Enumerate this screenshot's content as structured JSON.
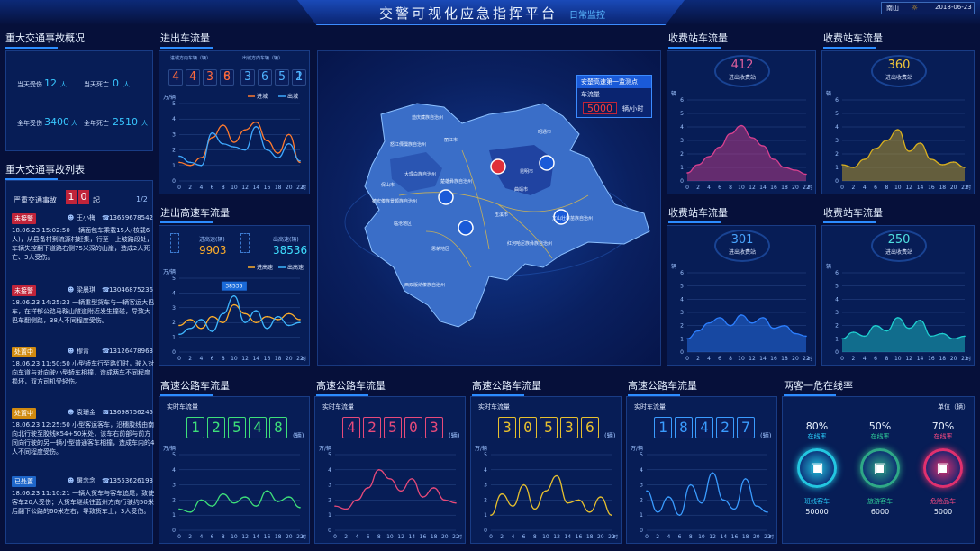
{
  "header": {
    "title": "交警可视化应急指挥平台",
    "mode": "日常监控",
    "weather": "南山",
    "date": "2018-06-23"
  },
  "accident_overview": {
    "title": "重大交通事故概况",
    "today_injured_label": "当天受伤",
    "today_injured": "12",
    "today_injured_unit": "人",
    "today_dead_label": "当天死亡",
    "today_dead": "0",
    "today_dead_unit": "人",
    "year_injured_label": "全年受伤",
    "year_injured": "3400",
    "year_injured_unit": "人",
    "year_dead_label": "全年死亡",
    "year_dead": "2510",
    "year_dead_unit": "人"
  },
  "accident_list": {
    "title": "重大交通事故列表",
    "severe_label": "严重交通事故",
    "severe_count": "10",
    "severe_unit": "起",
    "page": "1/2",
    "items": [
      {
        "tag": "未接警",
        "tag_color": "#c0243a",
        "person": "王小梅",
        "phone": "13659678542",
        "time": "18.06.23 15:02:50",
        "text": "一辆面包车乘载15人(核载6人)，从县备村到流源村赶集，行至一上坡路段处，车辆失控翻下道路右侧75米深的山崖，造成2人死亡、3人受伤。"
      },
      {
        "tag": "未接警",
        "tag_color": "#c0243a",
        "person": "梁晨琪",
        "phone": "13046875236",
        "time": "18.06.23 14:25:23",
        "text": "一辆重型货车与一辆客运大巴车，在祥郁公路马鞍山隧道附近发生撞碰，导致大巴车翻侧路，38人不同程度受伤。"
      },
      {
        "tag": "处置中",
        "tag_color": "#d08a10",
        "person": "穆青",
        "phone": "13126478963",
        "time": "18.06.23 11:50:50",
        "text": "小型轿车行至路灯时，驶入对向车道与对向驶小型轿车相撞，造成两车不同程度损坏，双方司机受轻伤。"
      },
      {
        "tag": "处置中",
        "tag_color": "#d08a10",
        "person": "袁珊金",
        "phone": "13698756245",
        "time": "18.06.23 12:25:50",
        "text": "小型客运客车，沿穗胶线由南向北行驶至胶线K54+50米处，该车右前部与前方同向行驶的另一辆小型普通客车相撞，造成车内的4人不同程度受伤。"
      },
      {
        "tag": "已处置",
        "tag_color": "#1e66c9",
        "person": "屠念念",
        "phone": "13553626193",
        "time": "18.06.23 11:10:21",
        "text": "一辆大货车与客车追尾，致使客车20人受伤；大货车继续往蓝州方向行驶约50米后翻下公路的60米左右，导致货车上，3人受伤。"
      }
    ]
  },
  "out_flow": {
    "title": "进出车流量",
    "in_label": "进城方向车辆（辆）",
    "out_label": "出城方向车辆（辆）",
    "in_digits": [
      "4",
      "4",
      "3",
      "8",
      "6"
    ],
    "out_digits": [
      "3",
      "6",
      "5",
      "1",
      "2"
    ],
    "unit": "万/辆",
    "legend_in": "进城",
    "legend_out": "出城",
    "in_color": "#ff7a2e",
    "out_color": "#3fa9ff"
  },
  "hw_flow": {
    "title": "进出高速车流量",
    "in_label": "进高速(辆)",
    "in_value": "9903",
    "out_label": "出高速(辆)",
    "out_value": "38536",
    "unit": "万/辆",
    "legend_in": "进高速",
    "legend_out": "出高速",
    "peak_label": "38536",
    "in_color": "#ffae2a",
    "out_color": "#3fb7ff"
  },
  "map": {
    "info_title": "安楚高速第一监测点",
    "flow_label": "车流量",
    "flow_value": "5000",
    "flow_unit": "辆/小时",
    "regions": [
      "迪庆藏族自治州",
      "丽江市",
      "怒江傈僳族自治州",
      "大理白族自治州",
      "楚雄彝族自治州",
      "昆明市",
      "曲靖市",
      "昭通市",
      "保山市",
      "德宏傣族景颇族自治州",
      "临沧地区",
      "思茅地区",
      "西双版纳傣族自治州",
      "玉溪市",
      "红河哈尼族彝族自治州",
      "文山壮族苗族自治州"
    ]
  },
  "toll1": {
    "title": "收费站车流量",
    "value": "412",
    "label": "进出收费站",
    "unit": "辆",
    "color": "#d8408f",
    "value_color": "#e0609f"
  },
  "toll2": {
    "title": "收费站车流量",
    "value": "360",
    "label": "进出收费站",
    "unit": "辆",
    "color": "#d8b020",
    "value_color": "#f0c63a"
  },
  "toll3": {
    "title": "收费站车流量",
    "value": "301",
    "label": "进出收费站",
    "unit": "辆",
    "color": "#2c7fff",
    "value_color": "#4aa6ff"
  },
  "toll4": {
    "title": "收费站车流量",
    "value": "250",
    "label": "进出收费站",
    "unit": "辆",
    "color": "#1fd0d0",
    "value_color": "#4fe0e0"
  },
  "hw1": {
    "title": "高速公路车流量",
    "realtime_label": "实时车流量",
    "digits": [
      "1",
      "2",
      "5",
      "4",
      "8"
    ],
    "unit": "(辆)",
    "yunit": "万/辆",
    "color": "#3ee07a"
  },
  "hw2": {
    "title": "高速公路车流量",
    "realtime_label": "实时车流量",
    "digits": [
      "4",
      "2",
      "5",
      "0",
      "3"
    ],
    "unit": "(辆)",
    "yunit": "万/辆",
    "color": "#e84a7a"
  },
  "hw3": {
    "title": "高速公路车流量",
    "realtime_label": "实时车流量",
    "digits": [
      "3",
      "0",
      "5",
      "3",
      "6"
    ],
    "unit": "(辆)",
    "yunit": "万/辆",
    "color": "#e8c12e"
  },
  "hw4": {
    "title": "高速公路车流量",
    "realtime_label": "实时车流量",
    "digits": [
      "1",
      "8",
      "4",
      "2",
      "7"
    ],
    "unit": "(辆)",
    "yunit": "万/辆",
    "color": "#3a9cff"
  },
  "dangerous": {
    "title": "两客一危在线率",
    "unit_label": "单位（辆）",
    "items": [
      {
        "pct": "80%",
        "pct_label": "在线率",
        "name": "班线客车",
        "count": "50000",
        "color": "#23c6e0",
        "pct_color": "#29d0ff"
      },
      {
        "pct": "50%",
        "pct_label": "在线率",
        "name": "旅游客车",
        "count": "6000",
        "color": "#2ea886",
        "pct_color": "#2fd09a"
      },
      {
        "pct": "70%",
        "pct_label": "在线率",
        "name": "危险品车",
        "count": "5000",
        "color": "#e0306e",
        "pct_color": "#ff4b84"
      }
    ]
  },
  "axis_x": [
    "0",
    "2",
    "4",
    "6",
    "8",
    "10",
    "12",
    "14",
    "16",
    "18",
    "20",
    "22"
  ],
  "axis_x_unit": "时",
  "chart_data": [
    {
      "type": "line",
      "title": "进出车流量",
      "ylabel": "万/辆",
      "xlabel": "时",
      "x": [
        0,
        2,
        4,
        6,
        8,
        10,
        12,
        14,
        16,
        18,
        20,
        22
      ],
      "ylim": [
        0,
        5
      ],
      "series": [
        {
          "name": "进城",
          "values": [
            1.2,
            1.0,
            1.5,
            2.8,
            3.6,
            2.5,
            3.3,
            3.8,
            2.6,
            1.8,
            3.0,
            1.2
          ]
        },
        {
          "name": "出城",
          "values": [
            1.6,
            1.2,
            1.0,
            3.1,
            2.4,
            2.2,
            2.0,
            3.5,
            2.0,
            1.5,
            2.4,
            1.3
          ]
        }
      ]
    },
    {
      "type": "line",
      "title": "进出高速车流量",
      "ylabel": "万/辆",
      "xlabel": "时",
      "x": [
        0,
        2,
        4,
        6,
        8,
        10,
        12,
        14,
        16,
        18,
        20,
        22
      ],
      "ylim": [
        0,
        5
      ],
      "series": [
        {
          "name": "进高速",
          "values": [
            1.8,
            2.2,
            1.6,
            2.4,
            2.0,
            3.2,
            2.6,
            2.0,
            2.4,
            2.2,
            2.6,
            2.2
          ]
        },
        {
          "name": "出高速",
          "values": [
            1.2,
            1.6,
            2.2,
            1.4,
            2.6,
            3.8,
            2.0,
            2.8,
            1.6,
            2.4,
            1.8,
            2.0
          ]
        }
      ]
    },
    {
      "type": "area",
      "title": "收费站车流量 412",
      "ylabel": "辆",
      "x": [
        0,
        2,
        4,
        6,
        8,
        10,
        12,
        14,
        16,
        18,
        20,
        22
      ],
      "ylim": [
        0,
        6
      ],
      "series": [
        {
          "values": [
            0.6,
            1.2,
            1.8,
            2.5,
            3.5,
            4.1,
            3.2,
            2.6,
            1.6,
            1.0,
            0.8,
            0.5
          ]
        }
      ]
    },
    {
      "type": "area",
      "title": "收费站车流量 360",
      "ylabel": "辆",
      "x": [
        0,
        2,
        4,
        6,
        8,
        10,
        12,
        14,
        16,
        18,
        20,
        22
      ],
      "ylim": [
        0,
        6
      ],
      "series": [
        {
          "values": [
            1.2,
            1.0,
            1.6,
            2.4,
            3.0,
            3.8,
            2.2,
            2.8,
            1.6,
            1.2,
            1.4,
            1.0
          ]
        }
      ]
    },
    {
      "type": "area",
      "title": "收费站车流量 301",
      "ylabel": "辆",
      "x": [
        0,
        2,
        4,
        6,
        8,
        10,
        12,
        14,
        16,
        18,
        20,
        22
      ],
      "ylim": [
        0,
        6
      ],
      "series": [
        {
          "values": [
            1.0,
            1.6,
            2.2,
            2.6,
            2.0,
            2.8,
            2.2,
            2.6,
            1.8,
            2.0,
            1.4,
            1.2
          ]
        }
      ]
    },
    {
      "type": "area",
      "title": "收费站车流量 250",
      "ylabel": "辆",
      "x": [
        0,
        2,
        4,
        6,
        8,
        10,
        12,
        14,
        16,
        18,
        20,
        22
      ],
      "ylim": [
        0,
        6
      ],
      "series": [
        {
          "values": [
            1.0,
            1.5,
            1.2,
            2.0,
            1.6,
            2.6,
            1.8,
            2.4,
            1.2,
            1.4,
            1.0,
            1.2
          ]
        }
      ]
    },
    {
      "type": "line",
      "title": "高速公路车流量 12548",
      "ylabel": "万/辆",
      "x": [
        0,
        2,
        4,
        6,
        8,
        10,
        12,
        14,
        16,
        18,
        20,
        22
      ],
      "ylim": [
        0,
        5
      ],
      "series": [
        {
          "values": [
            1.4,
            1.2,
            2.0,
            1.6,
            2.4,
            1.8,
            2.2,
            1.6,
            2.6,
            1.9,
            2.2,
            1.5
          ]
        }
      ]
    },
    {
      "type": "line",
      "title": "高速公路车流量 42503",
      "ylabel": "万/辆",
      "x": [
        0,
        2,
        4,
        6,
        8,
        10,
        12,
        14,
        16,
        18,
        20,
        22
      ],
      "ylim": [
        0,
        5
      ],
      "series": [
        {
          "values": [
            1.6,
            1.4,
            2.0,
            2.8,
            4.0,
            3.4,
            2.6,
            3.4,
            2.2,
            2.8,
            2.0,
            1.8
          ]
        }
      ]
    },
    {
      "type": "line",
      "title": "高速公路车流量 30536",
      "ylabel": "万/辆",
      "x": [
        0,
        2,
        4,
        6,
        8,
        10,
        12,
        14,
        16,
        18,
        20,
        22
      ],
      "ylim": [
        0,
        5
      ],
      "series": [
        {
          "values": [
            1.0,
            2.4,
            1.6,
            3.0,
            1.4,
            2.6,
            3.6,
            1.8,
            2.0,
            1.2,
            2.2,
            1.0
          ]
        }
      ]
    },
    {
      "type": "line",
      "title": "高速公路车流量 18427",
      "ylabel": "万/辆",
      "x": [
        0,
        2,
        4,
        6,
        8,
        10,
        12,
        14,
        16,
        18,
        20,
        22
      ],
      "ylim": [
        0,
        5
      ],
      "series": [
        {
          "values": [
            2.6,
            1.2,
            2.2,
            1.0,
            3.0,
            1.8,
            3.8,
            2.0,
            1.4,
            3.4,
            1.6,
            1.2
          ]
        }
      ]
    }
  ]
}
